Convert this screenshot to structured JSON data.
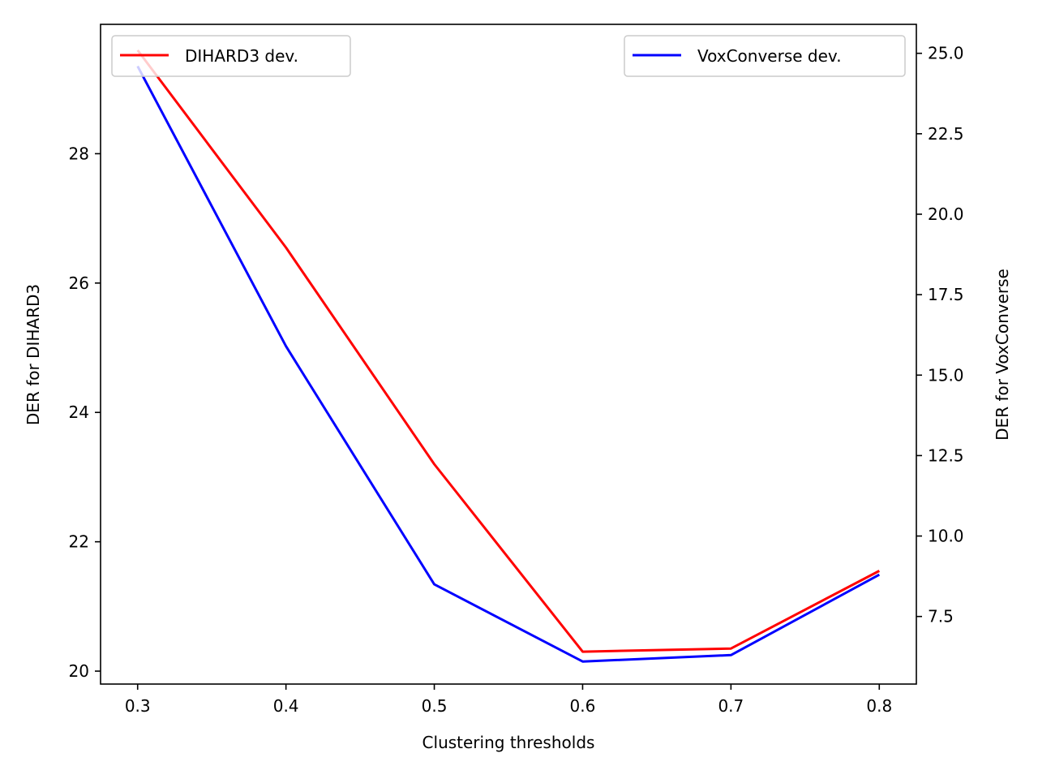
{
  "chart_data": {
    "type": "line",
    "x": [
      0.3,
      0.4,
      0.5,
      0.6,
      0.7,
      0.8
    ],
    "xlabel": "Clustering thresholds",
    "xticks": [
      "0.3",
      "0.4",
      "0.5",
      "0.6",
      "0.7",
      "0.8"
    ],
    "xlim": [
      0.275,
      0.825
    ],
    "left_axis": {
      "label": "DER for DIHARD3",
      "ylim": [
        19.8,
        30.0
      ],
      "ticks": [
        20,
        22,
        24,
        26,
        28
      ],
      "tick_labels": [
        "20",
        "22",
        "24",
        "26",
        "28"
      ]
    },
    "right_axis": {
      "label": "DER for VoxConverse",
      "ylim": [
        5.4,
        25.9
      ],
      "ticks": [
        7.5,
        10.0,
        12.5,
        15.0,
        17.5,
        20.0,
        22.5,
        25.0
      ],
      "tick_labels": [
        "7.5",
        "10.0",
        "12.5",
        "15.0",
        "17.5",
        "20.0",
        "22.5",
        "25.0"
      ]
    },
    "series": [
      {
        "name": "DIHARD3 dev.",
        "axis": "left",
        "color": "#ff0000",
        "values": [
          29.6,
          26.55,
          23.2,
          20.3,
          20.35,
          21.55
        ]
      },
      {
        "name": "VoxConverse dev.",
        "axis": "right",
        "color": "#0000ff",
        "values": [
          24.6,
          15.9,
          8.5,
          6.1,
          6.3,
          8.8
        ]
      }
    ],
    "legends": [
      {
        "series": "DIHARD3 dev.",
        "placement": "top-left"
      },
      {
        "series": "VoxConverse dev.",
        "placement": "top-right"
      }
    ],
    "grid": false
  }
}
